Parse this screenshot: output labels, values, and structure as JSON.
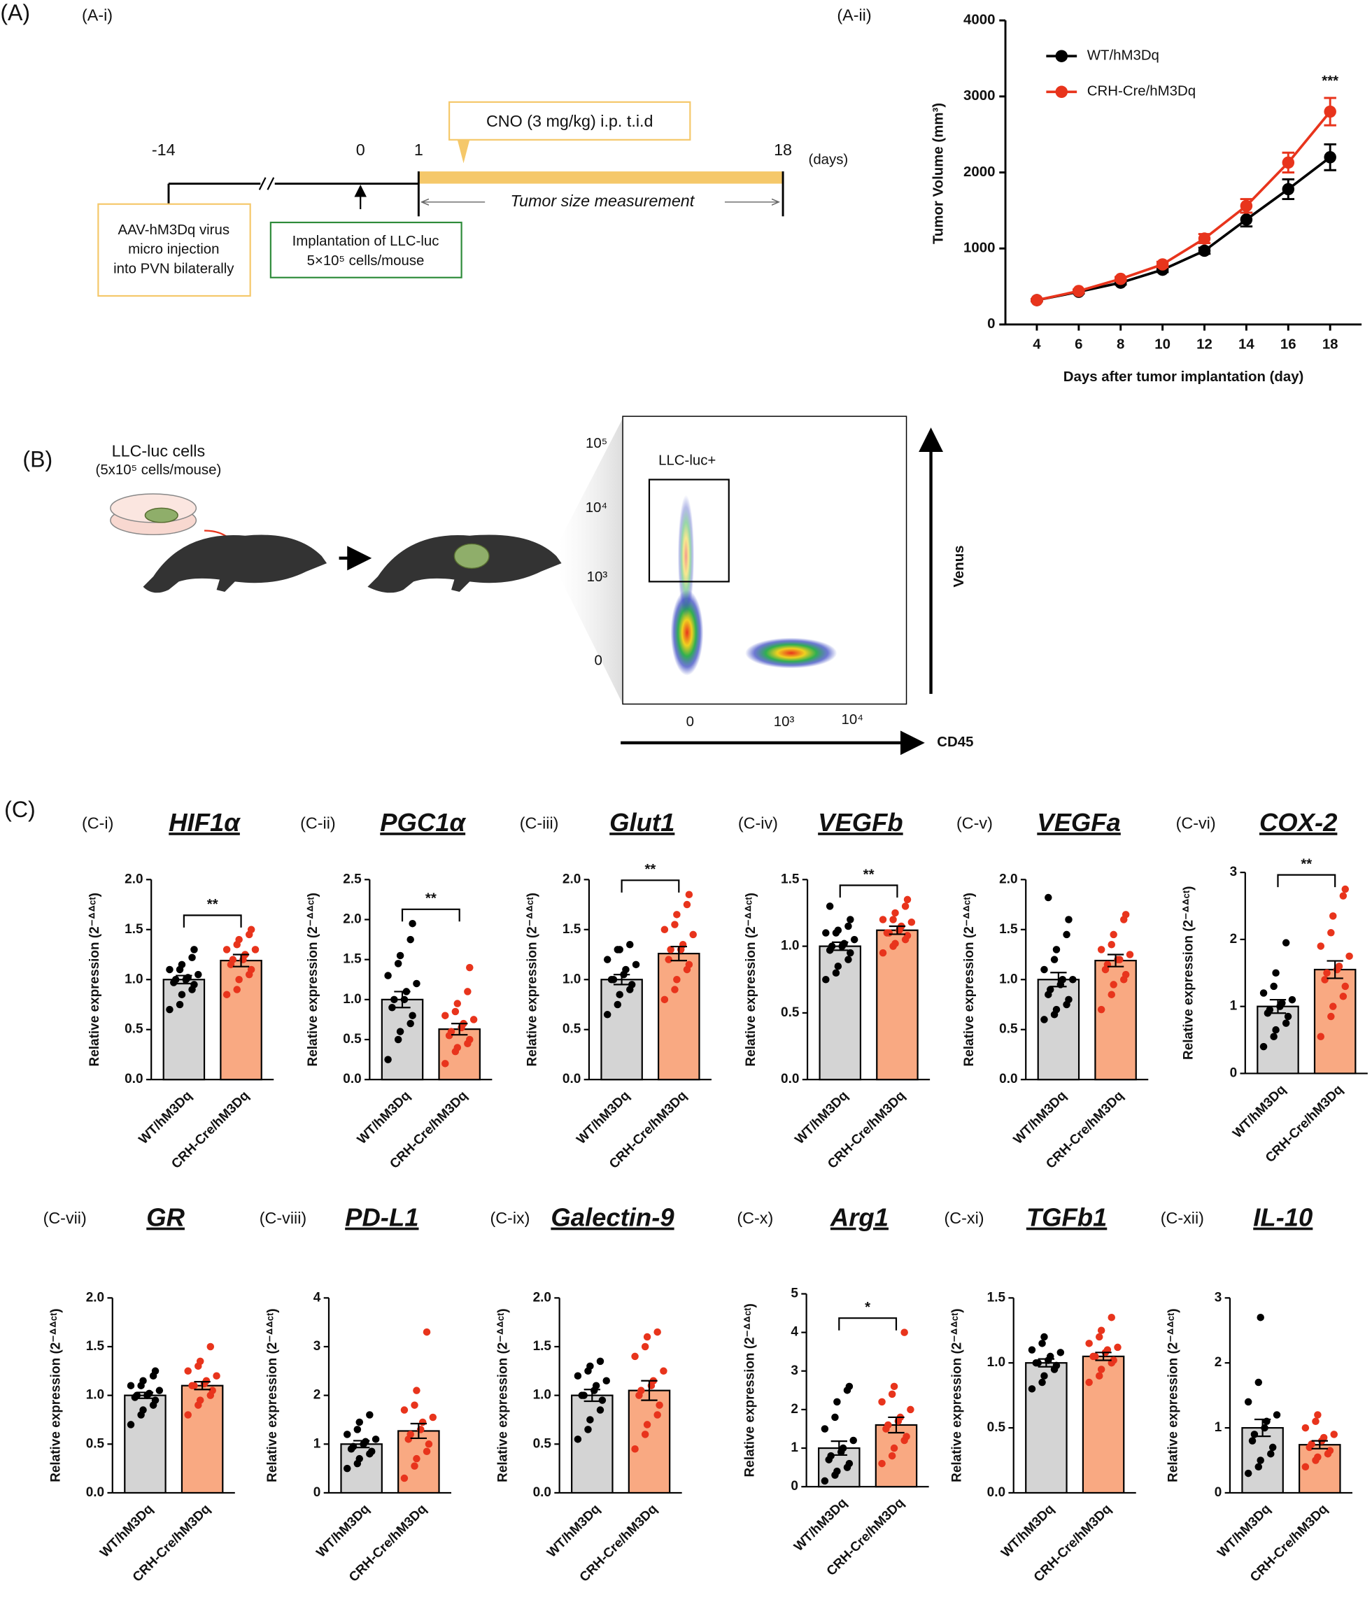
{
  "panel_labels": {
    "a": "(A)",
    "ai": "(A-i)",
    "aii": "(A-ii)",
    "b": "(B)",
    "c": "(C)"
  },
  "timeline": {
    "days": [
      "-14",
      "0",
      "1",
      "18"
    ],
    "unit": "(days)",
    "cno": "CNO (3 mg/kg) i.p. t.i.d",
    "measurement": "Tumor size measurement",
    "aav": [
      "AAV-hM3Dq virus",
      "micro injection",
      "into PVN bilaterally"
    ],
    "implant": [
      "Implantation of LLC-luc",
      "5×10⁵ cells/mouse"
    ]
  },
  "flow": {
    "cells": "LLC-luc cells",
    "cells_sub": "(5x10⁵ cells/mouse)",
    "gate": "LLC-luc+",
    "y_ticks": [
      "10⁵",
      "10⁴",
      "10³",
      "0"
    ],
    "x_ticks": [
      "0",
      "10³",
      "10⁴"
    ],
    "y_axis": "Venus",
    "x_axis": "CD45"
  },
  "chart_data": [
    {
      "type": "line",
      "x": [
        4,
        6,
        8,
        10,
        12,
        14,
        16,
        18
      ],
      "xlabel": "Days after tumor implantation (day)",
      "ylabel": "Tumor Volume (mm³)",
      "xlim": [
        2.5,
        19.5
      ],
      "xticks": [
        4,
        6,
        8,
        10,
        12,
        14,
        16,
        18
      ],
      "ylim": [
        0,
        4000
      ],
      "yticks": [
        0,
        1000,
        2000,
        3000,
        4000
      ],
      "annotation": "***",
      "series": [
        {
          "name": "WT/hM3Dq",
          "color": "#000000",
          "values": [
            320,
            430,
            550,
            720,
            970,
            1380,
            1780,
            2200
          ],
          "errors": [
            15,
            20,
            25,
            30,
            40,
            90,
            130,
            170
          ]
        },
        {
          "name": "CRH-Cre/hM3Dq",
          "color": "#e8341c",
          "values": [
            320,
            440,
            600,
            790,
            1130,
            1560,
            2130,
            2800
          ],
          "errors": [
            15,
            20,
            25,
            35,
            60,
            90,
            130,
            180
          ]
        }
      ]
    },
    {
      "type": "bar",
      "panel": "(C-i)",
      "title": "HIF1α",
      "ylabel": "Relative expression (2⁻ᐞᐞᶜᵗ)",
      "categories": [
        "WT/hM3Dq",
        "CRH-Cre/hM3Dq"
      ],
      "colors": [
        "#d4d4d4",
        "#f9a982"
      ],
      "point_colors": [
        "#000000",
        "#e8341c"
      ],
      "values": [
        1.0,
        1.19
      ],
      "errors": [
        0.04,
        0.06
      ],
      "significance": "**",
      "ylim": [
        0,
        2
      ],
      "yticks": [
        {
          "value": 0,
          "label": "0.0"
        },
        {
          "value": 0.5,
          "label": "0.5"
        },
        {
          "value": 1,
          "label": "1.0"
        },
        {
          "value": 1.5,
          "label": "1.5"
        },
        {
          "value": 2,
          "label": "2.0"
        }
      ],
      "points": [
        [
          0.7,
          0.75,
          0.85,
          0.9,
          0.95,
          0.97,
          1.0,
          1.0,
          1.02,
          1.05,
          1.1,
          1.1,
          1.15,
          1.22,
          1.3
        ],
        [
          0.85,
          0.9,
          1.0,
          1.05,
          1.1,
          1.15,
          1.2,
          1.2,
          1.25,
          1.3,
          1.3,
          1.35,
          1.4,
          1.45,
          1.5
        ]
      ]
    },
    {
      "type": "bar",
      "panel": "(C-ii)",
      "title": "PGC1α",
      "ylabel": "Relative expression (2⁻ᐞᐞᶜᵗ)",
      "categories": [
        "WT/hM3Dq",
        "CRH-Cre/hM3Dq"
      ],
      "colors": [
        "#d4d4d4",
        "#f9a982"
      ],
      "point_colors": [
        "#000000",
        "#e8341c"
      ],
      "values": [
        1.0,
        0.63
      ],
      "errors": [
        0.1,
        0.07
      ],
      "significance": "**",
      "ylim": [
        0,
        2.5
      ],
      "yticks": [
        {
          "value": 0,
          "label": "0.0"
        },
        {
          "value": 0.5,
          "label": "0.5"
        },
        {
          "value": 1,
          "label": "1.0"
        },
        {
          "value": 1.5,
          "label": "1.5"
        },
        {
          "value": 2,
          "label": "2.0"
        },
        2.5
      ],
      "points": [
        [
          0.25,
          0.5,
          0.6,
          0.7,
          0.8,
          0.9,
          1.0,
          1.0,
          1.1,
          1.2,
          1.3,
          1.45,
          1.55,
          1.75,
          1.95
        ],
        [
          0.2,
          0.35,
          0.4,
          0.45,
          0.5,
          0.55,
          0.6,
          0.65,
          0.7,
          0.75,
          0.8,
          0.85,
          0.95,
          1.1,
          1.4
        ]
      ]
    },
    {
      "type": "bar",
      "panel": "(C-iii)",
      "title": "Glut1",
      "ylabel": "Relative expression (2⁻ᐞᐞᶜᵗ)",
      "categories": [
        "WT/hM3Dq",
        "CRH-Cre/hM3Dq"
      ],
      "colors": [
        "#d4d4d4",
        "#f9a982"
      ],
      "point_colors": [
        "#000000",
        "#e8341c"
      ],
      "values": [
        1.0,
        1.26
      ],
      "errors": [
        0.05,
        0.07
      ],
      "significance": "**",
      "ylim": [
        0,
        2
      ],
      "yticks": [
        {
          "value": 0,
          "label": "0.0"
        },
        {
          "value": 0.5,
          "label": "0.5"
        },
        {
          "value": 1,
          "label": "1.0"
        },
        {
          "value": 1.5,
          "label": "1.5"
        },
        {
          "value": 2,
          "label": "2.0"
        }
      ],
      "points": [
        [
          0.65,
          0.75,
          0.85,
          0.9,
          0.95,
          1.0,
          1.0,
          1.05,
          1.1,
          1.15,
          1.2,
          1.3,
          1.3,
          1.35
        ],
        [
          0.8,
          0.9,
          1.0,
          1.1,
          1.15,
          1.2,
          1.3,
          1.3,
          1.35,
          1.45,
          1.5,
          1.55,
          1.65,
          1.75,
          1.85
        ]
      ]
    },
    {
      "type": "bar",
      "panel": "(C-iv)",
      "title": "VEGFb",
      "ylabel": "Relative expression (2⁻ᐞᐞᶜᵗ)",
      "categories": [
        "WT/hM3Dq",
        "CRH-Cre/hM3Dq"
      ],
      "colors": [
        "#d4d4d4",
        "#f9a982"
      ],
      "point_colors": [
        "#000000",
        "#e8341c"
      ],
      "values": [
        1.0,
        1.12
      ],
      "errors": [
        0.03,
        0.03
      ],
      "significance": "**",
      "ylim": [
        0,
        1.5
      ],
      "yticks": [
        {
          "value": 0,
          "label": "0.0"
        },
        {
          "value": 0.5,
          "label": "0.5"
        },
        {
          "value": 1,
          "label": "1.0"
        },
        1.5
      ],
      "points": [
        [
          0.75,
          0.8,
          0.85,
          0.9,
          0.95,
          0.97,
          1.0,
          1.0,
          1.02,
          1.05,
          1.1,
          1.1,
          1.12,
          1.15,
          1.2,
          1.3
        ],
        [
          0.95,
          1.0,
          1.02,
          1.05,
          1.08,
          1.1,
          1.1,
          1.12,
          1.15,
          1.18,
          1.2,
          1.2,
          1.25,
          1.3,
          1.35
        ]
      ]
    },
    {
      "type": "bar",
      "panel": "(C-v)",
      "title": "VEGFa",
      "ylabel": "Relative expression (2⁻ᐞᐞᶜᵗ)",
      "categories": [
        "WT/hM3Dq",
        "CRH-Cre/hM3Dq"
      ],
      "colors": [
        "#d4d4d4",
        "#f9a982"
      ],
      "point_colors": [
        "#000000",
        "#e8341c"
      ],
      "values": [
        1.0,
        1.19
      ],
      "errors": [
        0.07,
        0.06
      ],
      "ylim": [
        0,
        2
      ],
      "yticks": [
        {
          "value": 0,
          "label": "0.0"
        },
        {
          "value": 0.5,
          "label": "0.5"
        },
        {
          "value": 1,
          "label": "1.0"
        },
        {
          "value": 1.5,
          "label": "1.5"
        },
        {
          "value": 2,
          "label": "2.0"
        }
      ],
      "points": [
        [
          0.6,
          0.65,
          0.7,
          0.75,
          0.8,
          0.85,
          0.9,
          0.95,
          1.0,
          1.0,
          1.1,
          1.2,
          1.3,
          1.45,
          1.6,
          1.82
        ],
        [
          0.7,
          0.85,
          0.95,
          1.0,
          1.05,
          1.1,
          1.15,
          1.2,
          1.2,
          1.25,
          1.3,
          1.35,
          1.45,
          1.6,
          1.65
        ]
      ]
    },
    {
      "type": "bar",
      "panel": "(C-vi)",
      "title": "COX-2",
      "ylabel": "Relative expression (2⁻ᐞᐞᶜᵗ)",
      "categories": [
        "WT/hM3Dq",
        "CRH-Cre/hM3Dq"
      ],
      "colors": [
        "#d4d4d4",
        "#f9a982"
      ],
      "point_colors": [
        "#000000",
        "#e8341c"
      ],
      "values": [
        1.0,
        1.55
      ],
      "errors": [
        0.1,
        0.13
      ],
      "significance": "**",
      "ylim": [
        0,
        3
      ],
      "yticks": [
        0,
        1,
        2,
        3
      ],
      "points": [
        [
          0.4,
          0.55,
          0.65,
          0.75,
          0.85,
          0.9,
          0.95,
          1.0,
          1.05,
          1.1,
          1.2,
          1.3,
          1.5,
          1.95
        ],
        [
          0.55,
          0.85,
          1.0,
          1.15,
          1.3,
          1.4,
          1.5,
          1.55,
          1.6,
          1.75,
          1.9,
          2.1,
          2.35,
          2.65,
          2.75
        ]
      ]
    },
    {
      "type": "bar",
      "panel": "(C-vii)",
      "title": "GR",
      "ylabel": "Relative expression (2⁻ᐞᐞᶜᵗ)",
      "categories": [
        "WT/hM3Dq",
        "CRH-Cre/hM3Dq"
      ],
      "colors": [
        "#d4d4d4",
        "#f9a982"
      ],
      "point_colors": [
        "#000000",
        "#e8341c"
      ],
      "values": [
        1.0,
        1.1
      ],
      "errors": [
        0.03,
        0.04
      ],
      "ylim": [
        0,
        2
      ],
      "yticks": [
        {
          "value": 0,
          "label": "0.0"
        },
        {
          "value": 0.5,
          "label": "0.5"
        },
        {
          "value": 1,
          "label": "1.0"
        },
        {
          "value": 1.5,
          "label": "1.5"
        },
        {
          "value": 2,
          "label": "2.0"
        }
      ],
      "points": [
        [
          0.7,
          0.8,
          0.85,
          0.9,
          0.95,
          0.98,
          1.0,
          1.0,
          1.02,
          1.05,
          1.1,
          1.1,
          1.15,
          1.2,
          1.25
        ],
        [
          0.8,
          0.9,
          0.95,
          1.0,
          1.05,
          1.1,
          1.1,
          1.12,
          1.15,
          1.2,
          1.25,
          1.3,
          1.35,
          1.5
        ]
      ]
    },
    {
      "type": "bar",
      "panel": "(C-viii)",
      "title": "PD-L1",
      "ylabel": "Relative expression (2⁻ᐞᐞᶜᵗ)",
      "categories": [
        "WT/hM3Dq",
        "CRH-Cre/hM3Dq"
      ],
      "colors": [
        "#d4d4d4",
        "#f9a982"
      ],
      "point_colors": [
        "#000000",
        "#e8341c"
      ],
      "values": [
        1.0,
        1.27
      ],
      "errors": [
        0.07,
        0.15
      ],
      "ylim": [
        0,
        4
      ],
      "yticks": [
        0,
        1,
        2,
        3,
        4
      ],
      "points": [
        [
          0.5,
          0.6,
          0.7,
          0.8,
          0.85,
          0.9,
          0.95,
          1.0,
          1.05,
          1.1,
          1.2,
          1.3,
          1.45,
          1.6
        ],
        [
          0.3,
          0.55,
          0.7,
          0.85,
          1.0,
          1.1,
          1.2,
          1.3,
          1.45,
          1.55,
          1.7,
          1.8,
          2.1,
          3.3
        ]
      ]
    },
    {
      "type": "bar",
      "panel": "(C-ix)",
      "title": "Galectin-9",
      "ylabel": "Relative expression (2⁻ᐞᐞᶜᵗ)",
      "categories": [
        "WT/hM3Dq",
        "CRH-Cre/hM3Dq"
      ],
      "colors": [
        "#d4d4d4",
        "#f9a982"
      ],
      "point_colors": [
        "#000000",
        "#e8341c"
      ],
      "values": [
        1.0,
        1.05
      ],
      "errors": [
        0.06,
        0.1
      ],
      "ylim": [
        0,
        2
      ],
      "yticks": [
        {
          "value": 0,
          "label": "0.0"
        },
        {
          "value": 0.5,
          "label": "0.5"
        },
        {
          "value": 1,
          "label": "1.0"
        },
        {
          "value": 1.5,
          "label": "1.5"
        },
        {
          "value": 2,
          "label": "2.0"
        }
      ],
      "points": [
        [
          0.55,
          0.65,
          0.75,
          0.85,
          0.95,
          1.0,
          1.0,
          1.05,
          1.1,
          1.15,
          1.2,
          1.25,
          1.3,
          1.35
        ],
        [
          0.45,
          0.6,
          0.7,
          0.8,
          0.9,
          1.0,
          1.05,
          1.1,
          1.15,
          1.25,
          1.4,
          1.5,
          1.6,
          1.65
        ]
      ]
    },
    {
      "type": "bar",
      "panel": "(C-x)",
      "title": "Arg1",
      "ylabel": "Relative expression (2⁻ᐞᐞᶜᵗ)",
      "categories": [
        "WT/hM3Dq",
        "CRH-Cre/hM3Dq"
      ],
      "colors": [
        "#d4d4d4",
        "#f9a982"
      ],
      "point_colors": [
        "#000000",
        "#e8341c"
      ],
      "values": [
        1.0,
        1.6
      ],
      "errors": [
        0.18,
        0.2
      ],
      "significance": "*",
      "ylim": [
        0,
        5
      ],
      "yticks": [
        0,
        1,
        2,
        3,
        4,
        5
      ],
      "points": [
        [
          0.15,
          0.3,
          0.4,
          0.5,
          0.6,
          0.7,
          0.8,
          0.9,
          1.0,
          1.2,
          1.5,
          1.8,
          2.2,
          2.5,
          2.6
        ],
        [
          0.6,
          0.8,
          1.0,
          1.2,
          1.3,
          1.5,
          1.6,
          1.7,
          1.8,
          2.0,
          2.2,
          2.4,
          2.6,
          4.0
        ]
      ]
    },
    {
      "type": "bar",
      "panel": "(C-xi)",
      "title": "TGFb1",
      "ylabel": "Relative expression (2⁻ᐞᐞᶜᵗ)",
      "categories": [
        "WT/hM3Dq",
        "CRH-Cre/hM3Dq"
      ],
      "colors": [
        "#d4d4d4",
        "#f9a982"
      ],
      "point_colors": [
        "#000000",
        "#e8341c"
      ],
      "values": [
        1.0,
        1.05
      ],
      "errors": [
        0.03,
        0.03
      ],
      "ylim": [
        0,
        1.5
      ],
      "yticks": [
        {
          "value": 0,
          "label": "0.0"
        },
        {
          "value": 0.5,
          "label": "0.5"
        },
        {
          "value": 1,
          "label": "1.0"
        },
        1.5
      ],
      "points": [
        [
          0.8,
          0.85,
          0.9,
          0.95,
          0.98,
          1.0,
          1.0,
          1.02,
          1.05,
          1.08,
          1.1,
          1.15,
          1.2
        ],
        [
          0.85,
          0.9,
          0.95,
          1.0,
          1.02,
          1.05,
          1.05,
          1.08,
          1.1,
          1.12,
          1.15,
          1.2,
          1.25,
          1.35
        ]
      ]
    },
    {
      "type": "bar",
      "panel": "(C-xii)",
      "title": "IL-10",
      "ylabel": "Relative expression (2⁻ᐞᐞᶜᵗ)",
      "categories": [
        "WT/hM3Dq",
        "CRH-Cre/hM3Dq"
      ],
      "colors": [
        "#d4d4d4",
        "#f9a982"
      ],
      "point_colors": [
        "#000000",
        "#e8341c"
      ],
      "values": [
        1.0,
        0.74
      ],
      "errors": [
        0.13,
        0.06
      ],
      "ylim": [
        0,
        3
      ],
      "yticks": [
        0,
        1,
        2,
        3
      ],
      "points": [
        [
          0.3,
          0.4,
          0.5,
          0.6,
          0.7,
          0.8,
          0.9,
          1.0,
          1.1,
          1.2,
          1.4,
          1.7,
          2.7
        ],
        [
          0.4,
          0.5,
          0.55,
          0.6,
          0.65,
          0.7,
          0.75,
          0.8,
          0.85,
          0.9,
          1.0,
          1.1,
          1.2
        ]
      ]
    }
  ]
}
